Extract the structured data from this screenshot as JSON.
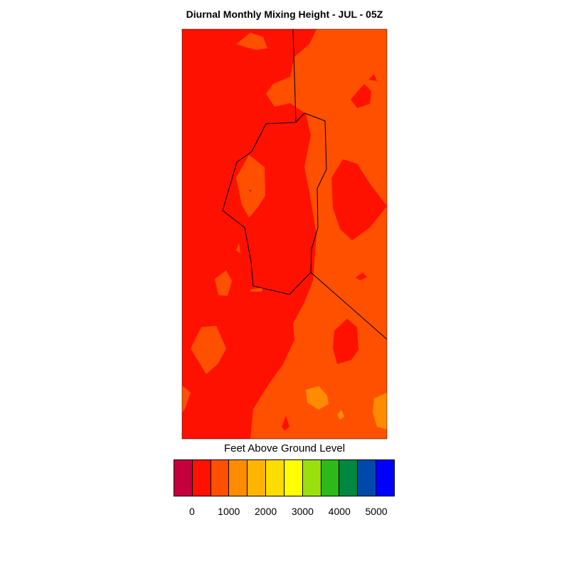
{
  "title": "Diurnal Monthly Mixing Height - JUL - 05Z",
  "colorbar": {
    "title": "Feet Above Ground Level",
    "colors": [
      "#c4003c",
      "#ff1100",
      "#ff5000",
      "#ff8c00",
      "#ffb400",
      "#ffdc00",
      "#ffff00",
      "#99e00c",
      "#2eb81a",
      "#008840",
      "#0049a8",
      "#0000ff"
    ],
    "tick_labels": [
      "0",
      "1000",
      "2000",
      "3000",
      "4000",
      "5000"
    ]
  },
  "map": {
    "fill_colors": {
      "zone_1000_1500": "#ff1100",
      "zone_1500_2000": "#ff5000",
      "zone_2000_2500": "#ff8c00"
    },
    "boundary_color": "#000000"
  }
}
